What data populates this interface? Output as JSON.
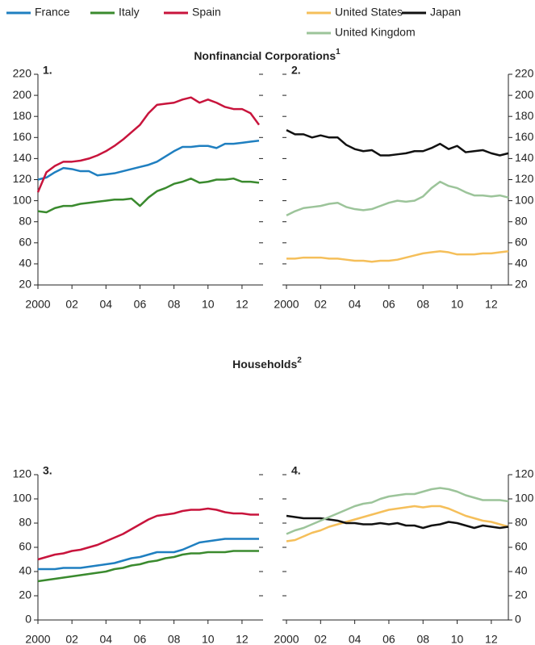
{
  "sections": [
    {
      "title": "Nonfinancial Corporations",
      "note": "1"
    },
    {
      "title": "Households",
      "note": "2"
    }
  ],
  "chart_data": [
    {
      "type": "line",
      "title": "1.",
      "x": [
        2000,
        2000.5,
        2001,
        2001.5,
        2002,
        2002.5,
        2003,
        2003.5,
        2004,
        2004.5,
        2005,
        2005.5,
        2006,
        2006.5,
        2007,
        2007.5,
        2008,
        2008.5,
        2009,
        2009.5,
        2010,
        2010.5,
        2011,
        2011.5,
        2012,
        2012.5,
        2013
      ],
      "xlim": [
        2000,
        2013
      ],
      "xticks": [
        2000,
        {
          "value": 2002,
          "label": "02"
        },
        {
          "value": 2004,
          "label": "04"
        },
        {
          "value": 2006,
          "label": "06"
        },
        {
          "value": 2008,
          "label": "08"
        },
        {
          "value": 2010,
          "label": "10"
        },
        {
          "value": 2012,
          "label": "12"
        }
      ],
      "ylim": [
        20,
        220
      ],
      "yticks": [
        20,
        40,
        60,
        80,
        100,
        120,
        140,
        160,
        180,
        200,
        220
      ],
      "series": [
        {
          "name": "France",
          "color": "#1f7fc0",
          "values": [
            120,
            122,
            127,
            131,
            130,
            128,
            128,
            124,
            125,
            126,
            128,
            130,
            132,
            134,
            137,
            142,
            147,
            151,
            151,
            152,
            152,
            150,
            154,
            154,
            155,
            156,
            157
          ]
        },
        {
          "name": "Italy",
          "color": "#3a8a2e",
          "values": [
            90,
            89,
            93,
            95,
            95,
            97,
            98,
            99,
            100,
            101,
            101,
            102,
            95,
            103,
            109,
            112,
            116,
            118,
            121,
            117,
            118,
            120,
            120,
            121,
            118,
            118,
            117
          ]
        },
        {
          "name": "Spain",
          "color": "#c8143c",
          "values": [
            108,
            127,
            133,
            137,
            137,
            138,
            140,
            143,
            147,
            152,
            158,
            165,
            172,
            183,
            191,
            192,
            193,
            196,
            198,
            193,
            196,
            193,
            189,
            187,
            187,
            183,
            172
          ]
        }
      ]
    },
    {
      "type": "line",
      "title": "2.",
      "x": [
        2000,
        2000.5,
        2001,
        2001.5,
        2002,
        2002.5,
        2003,
        2003.5,
        2004,
        2004.5,
        2005,
        2005.5,
        2006,
        2006.5,
        2007,
        2007.5,
        2008,
        2008.5,
        2009,
        2009.5,
        2010,
        2010.5,
        2011,
        2011.5,
        2012,
        2012.5,
        2013
      ],
      "xlim": [
        2000,
        2013
      ],
      "xticks": [
        2000,
        {
          "value": 2002,
          "label": "02"
        },
        {
          "value": 2004,
          "label": "04"
        },
        {
          "value": 2006,
          "label": "06"
        },
        {
          "value": 2008,
          "label": "08"
        },
        {
          "value": 2010,
          "label": "10"
        },
        {
          "value": 2012,
          "label": "12"
        }
      ],
      "ylim": [
        20,
        220
      ],
      "yticks": [
        20,
        40,
        60,
        80,
        100,
        120,
        140,
        160,
        180,
        200,
        220
      ],
      "series": [
        {
          "name": "United States",
          "color": "#f5bf5a",
          "values": [
            45,
            45,
            46,
            46,
            46,
            45,
            45,
            44,
            43,
            43,
            42,
            43,
            43,
            44,
            46,
            48,
            50,
            51,
            52,
            51,
            49,
            49,
            49,
            50,
            50,
            51,
            52
          ]
        },
        {
          "name": "Japan",
          "color": "#111111",
          "values": [
            167,
            163,
            163,
            160,
            162,
            160,
            160,
            153,
            149,
            147,
            148,
            143,
            143,
            144,
            145,
            147,
            147,
            150,
            154,
            149,
            152,
            146,
            147,
            148,
            145,
            143,
            145
          ]
        },
        {
          "name": "United Kingdom",
          "color": "#9cc49a",
          "values": [
            86,
            90,
            93,
            94,
            95,
            97,
            98,
            94,
            92,
            91,
            92,
            95,
            98,
            100,
            99,
            100,
            104,
            112,
            118,
            114,
            112,
            108,
            105,
            105,
            104,
            105,
            103
          ]
        }
      ]
    },
    {
      "type": "line",
      "title": "3.",
      "x": [
        2000,
        2000.5,
        2001,
        2001.5,
        2002,
        2002.5,
        2003,
        2003.5,
        2004,
        2004.5,
        2005,
        2005.5,
        2006,
        2006.5,
        2007,
        2007.5,
        2008,
        2008.5,
        2009,
        2009.5,
        2010,
        2010.5,
        2011,
        2011.5,
        2012,
        2012.5,
        2013
      ],
      "xlim": [
        2000,
        2013
      ],
      "xticks": [
        2000,
        {
          "value": 2002,
          "label": "02"
        },
        {
          "value": 2004,
          "label": "04"
        },
        {
          "value": 2006,
          "label": "06"
        },
        {
          "value": 2008,
          "label": "08"
        },
        {
          "value": 2010,
          "label": "10"
        },
        {
          "value": 2012,
          "label": "12"
        }
      ],
      "ylim": [
        0,
        120
      ],
      "yticks": [
        0,
        20,
        40,
        60,
        80,
        100,
        120
      ],
      "series": [
        {
          "name": "France",
          "color": "#1f7fc0",
          "values": [
            42,
            42,
            42,
            43,
            43,
            43,
            44,
            45,
            46,
            47,
            49,
            51,
            52,
            54,
            56,
            56,
            56,
            58,
            61,
            64,
            65,
            66,
            67,
            67,
            67,
            67,
            67
          ]
        },
        {
          "name": "Italy",
          "color": "#3a8a2e",
          "values": [
            32,
            33,
            34,
            35,
            36,
            37,
            38,
            39,
            40,
            42,
            43,
            45,
            46,
            48,
            49,
            51,
            52,
            54,
            55,
            55,
            56,
            56,
            56,
            57,
            57,
            57,
            57
          ]
        },
        {
          "name": "Spain",
          "color": "#c8143c",
          "values": [
            50,
            52,
            54,
            55,
            57,
            58,
            60,
            62,
            65,
            68,
            71,
            75,
            79,
            83,
            86,
            87,
            88,
            90,
            91,
            91,
            92,
            91,
            89,
            88,
            88,
            87,
            87
          ]
        }
      ]
    },
    {
      "type": "line",
      "title": "4.",
      "x": [
        2000,
        2000.5,
        2001,
        2001.5,
        2002,
        2002.5,
        2003,
        2003.5,
        2004,
        2004.5,
        2005,
        2005.5,
        2006,
        2006.5,
        2007,
        2007.5,
        2008,
        2008.5,
        2009,
        2009.5,
        2010,
        2010.5,
        2011,
        2011.5,
        2012,
        2012.5,
        2013
      ],
      "xlim": [
        2000,
        2013
      ],
      "xticks": [
        2000,
        {
          "value": 2002,
          "label": "02"
        },
        {
          "value": 2004,
          "label": "04"
        },
        {
          "value": 2006,
          "label": "06"
        },
        {
          "value": 2008,
          "label": "08"
        },
        {
          "value": 2010,
          "label": "10"
        },
        {
          "value": 2012,
          "label": "12"
        }
      ],
      "ylim": [
        0,
        120
      ],
      "yticks": [
        0,
        20,
        40,
        60,
        80,
        100,
        120
      ],
      "series": [
        {
          "name": "United States",
          "color": "#f5bf5a",
          "values": [
            65,
            66,
            69,
            72,
            74,
            77,
            79,
            81,
            83,
            85,
            87,
            89,
            91,
            92,
            93,
            94,
            93,
            94,
            94,
            92,
            89,
            86,
            84,
            82,
            81,
            79,
            77
          ]
        },
        {
          "name": "Japan",
          "color": "#111111",
          "values": [
            86,
            85,
            84,
            84,
            84,
            83,
            82,
            80,
            80,
            79,
            79,
            80,
            79,
            80,
            78,
            78,
            76,
            78,
            79,
            81,
            80,
            78,
            76,
            78,
            77,
            76,
            77
          ]
        },
        {
          "name": "United Kingdom",
          "color": "#9cc49a",
          "values": [
            71,
            74,
            76,
            79,
            82,
            85,
            88,
            91,
            94,
            96,
            97,
            100,
            102,
            103,
            104,
            104,
            106,
            108,
            109,
            108,
            106,
            103,
            101,
            99,
            99,
            99,
            98
          ]
        }
      ]
    }
  ]
}
